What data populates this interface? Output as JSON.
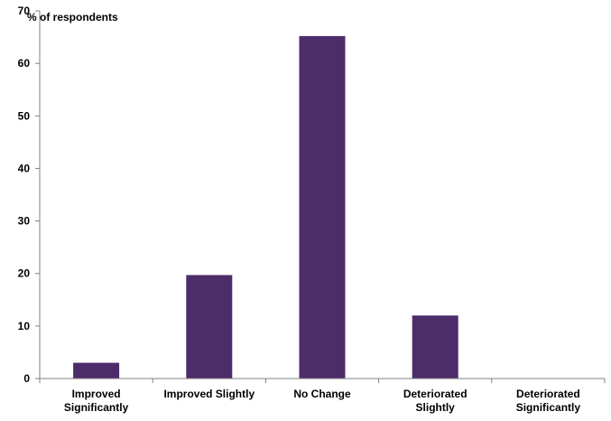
{
  "chart_data": {
    "type": "bar",
    "ylabel": "% of respondents",
    "xlabel": "",
    "categories": [
      [
        "Improved",
        "Significantly"
      ],
      [
        "Improved Slightly"
      ],
      [
        "No Change"
      ],
      [
        "Deteriorated",
        "Slightly"
      ],
      [
        "Deteriorated",
        "Significantly"
      ]
    ],
    "values": [
      3,
      19.7,
      65.2,
      12,
      0
    ],
    "ylim": [
      0,
      70
    ],
    "yticks": [
      0,
      10,
      20,
      30,
      40,
      50,
      60,
      70
    ],
    "grid": false,
    "bar_color": "#4d2c6a",
    "axis_color": "#808080"
  }
}
